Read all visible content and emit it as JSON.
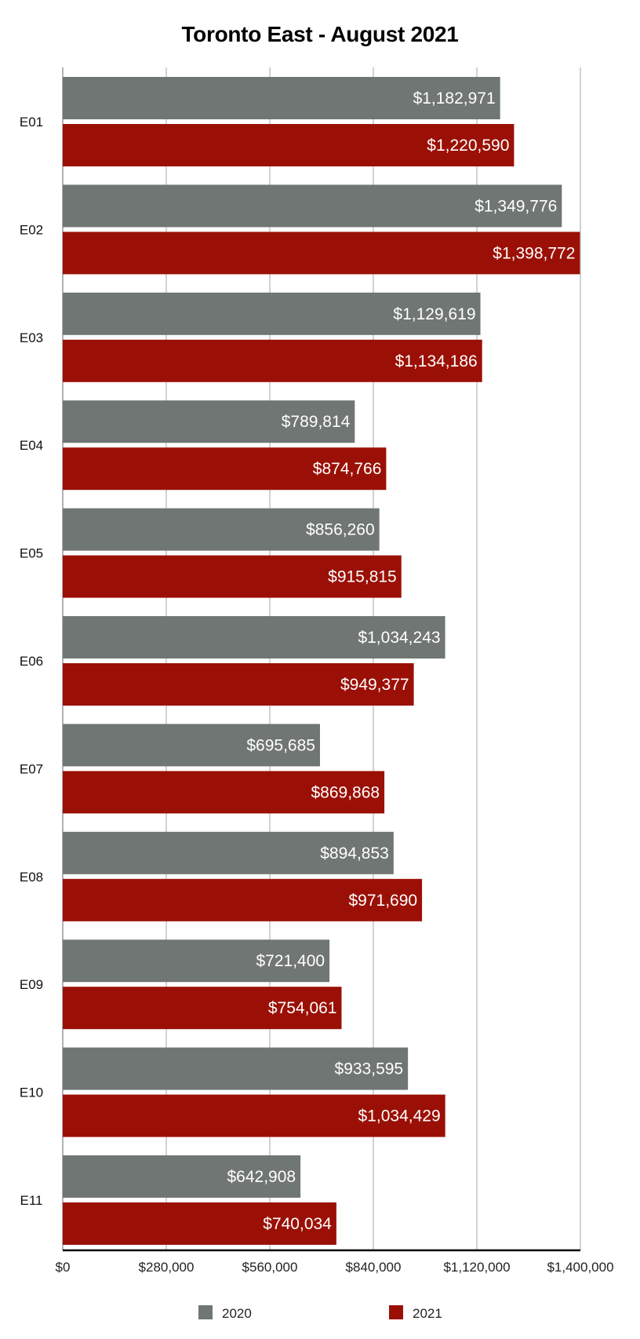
{
  "chart_data": {
    "type": "bar",
    "orientation": "horizontal",
    "title": "Toronto East - August 2021",
    "xlabel": "",
    "ylabel": "",
    "categories": [
      "E01",
      "E02",
      "E03",
      "E04",
      "E05",
      "E06",
      "E07",
      "E08",
      "E09",
      "E10",
      "E11"
    ],
    "series": [
      {
        "name": "2020",
        "color": "#707673",
        "values": [
          1182971,
          1349776,
          1129619,
          789814,
          856260,
          1034243,
          695685,
          894853,
          721400,
          933595,
          642908
        ],
        "labels": [
          "$1,182,971",
          "$1,349,776",
          "$1,129,619",
          "$789,814",
          "$856,260",
          "$1,034,243",
          "$695,685",
          "$894,853",
          "$721,400",
          "$933,595",
          "$642,908"
        ]
      },
      {
        "name": "2021",
        "color": "#9b1006",
        "values": [
          1220590,
          1398772,
          1134186,
          874766,
          915815,
          949377,
          869868,
          971690,
          754061,
          1034429,
          740034
        ],
        "labels": [
          "$1,220,590",
          "$1,398,772",
          "$1,134,186",
          "$874,766",
          "$915,815",
          "$949,377",
          "$869,868",
          "$971,690",
          "$754,061",
          "$1,034,429",
          "$740,034"
        ]
      }
    ],
    "xlim": [
      0,
      1400000
    ],
    "x_ticks": [
      0,
      280000,
      560000,
      840000,
      1120000,
      1400000
    ],
    "x_tick_labels": [
      "$0",
      "$280,000",
      "$560,000",
      "$840,000",
      "$1,120,000",
      "$1,400,000"
    ],
    "grid": true,
    "legend_position": "bottom"
  }
}
